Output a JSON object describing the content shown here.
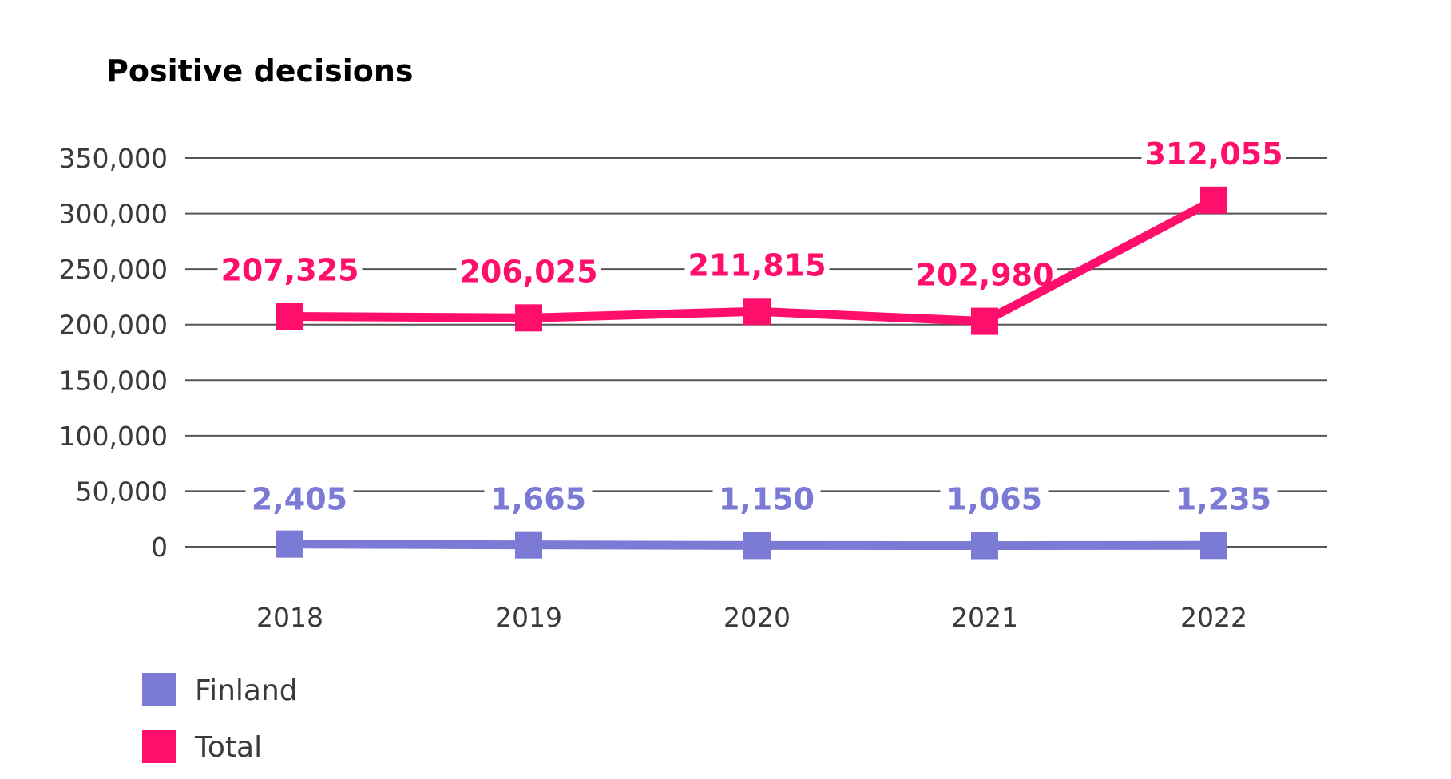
{
  "chart_data": {
    "type": "line",
    "title": "Positive decisions",
    "xlabel": "",
    "ylabel": "",
    "categories": [
      "2018",
      "2019",
      "2020",
      "2021",
      "2022"
    ],
    "ylim": [
      0,
      350000
    ],
    "yticks": [
      0,
      50000,
      100000,
      150000,
      200000,
      250000,
      300000,
      350000
    ],
    "ytick_labels": [
      "0",
      "50,000",
      "100,000",
      "150,000",
      "200,000",
      "250,000",
      "300,000",
      "350,000"
    ],
    "grid": true,
    "legend_position": "bottom-left",
    "series": [
      {
        "name": "Finland",
        "color": "#7b7bd6",
        "values": [
          2405,
          1665,
          1150,
          1065,
          1235
        ],
        "labels": [
          "2,405",
          "1,665",
          "1,150",
          "1,065",
          "1,235"
        ]
      },
      {
        "name": "Total",
        "color": "#ff0f6b",
        "values": [
          207325,
          206025,
          211815,
          202980,
          312055
        ],
        "labels": [
          "207,325",
          "206,025",
          "211,815",
          "202,980",
          "312,055"
        ]
      }
    ]
  }
}
